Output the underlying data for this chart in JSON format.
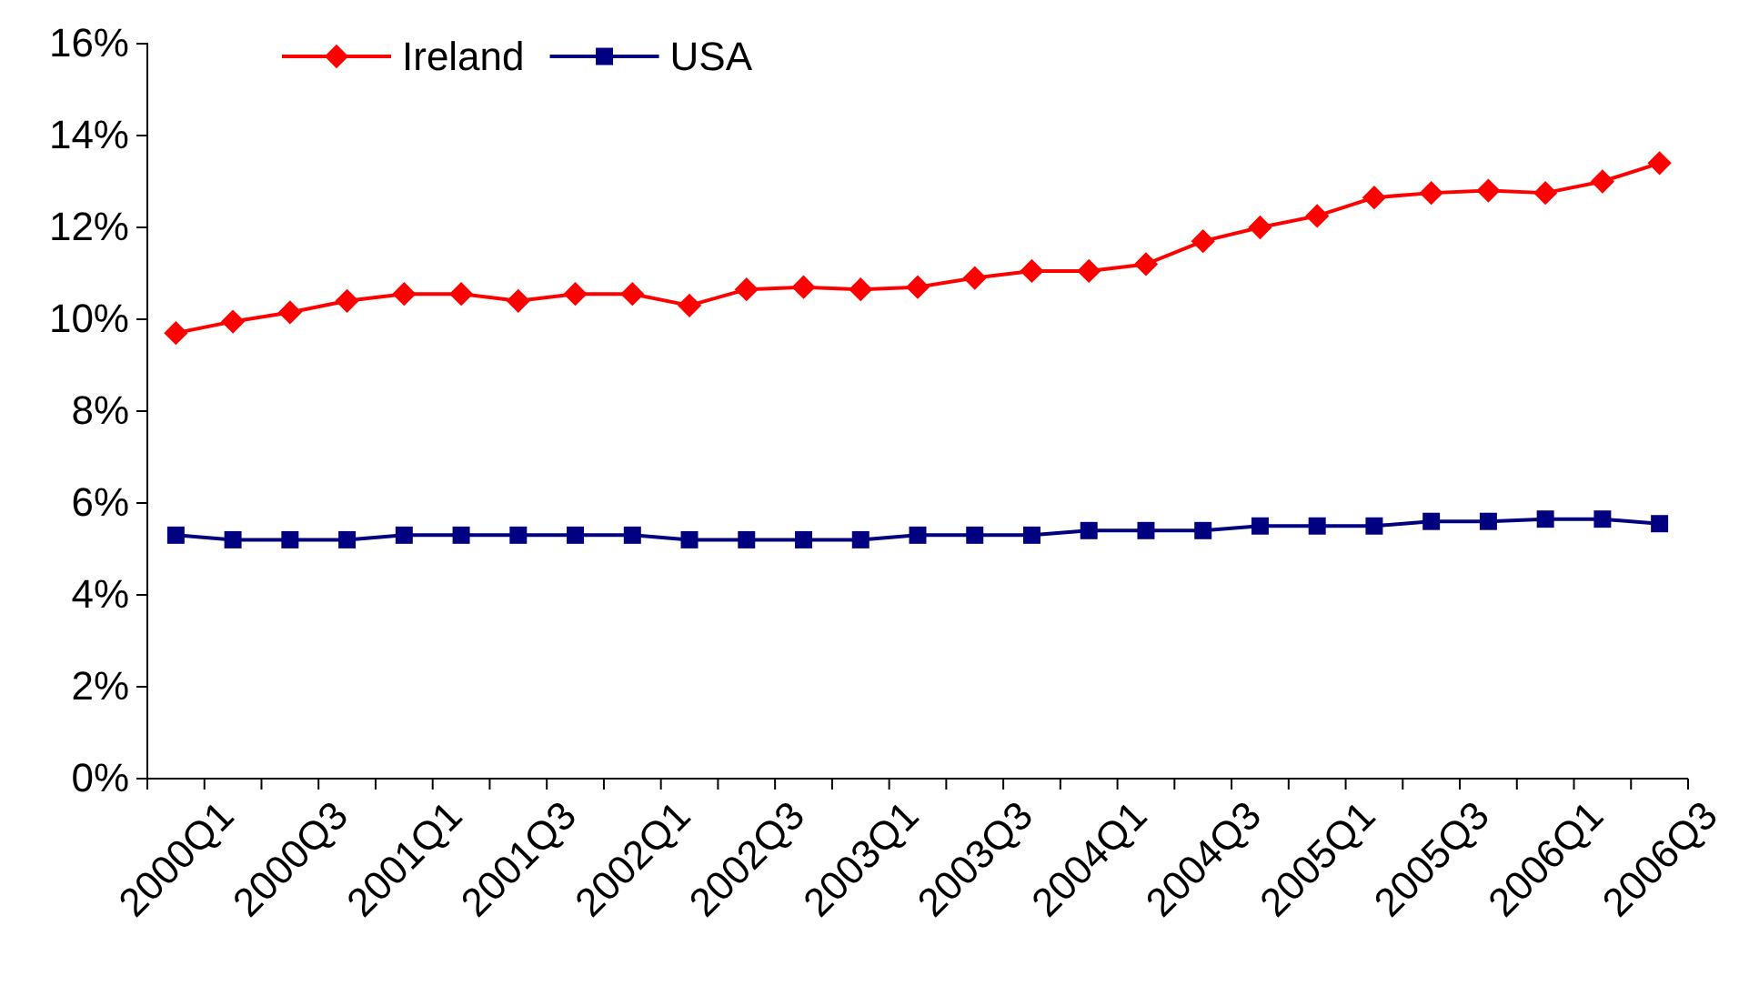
{
  "chart_data": {
    "type": "line",
    "categories": [
      "2000Q1",
      null,
      "2000Q3",
      null,
      "2001Q1",
      null,
      "2001Q3",
      null,
      "2002Q1",
      null,
      "2002Q3",
      null,
      "2003Q1",
      null,
      "2003Q3",
      null,
      "2004Q1",
      null,
      "2004Q3",
      null,
      "2005Q1",
      null,
      "2005Q3",
      null,
      "2006Q1",
      null,
      "2006Q3"
    ],
    "series": [
      {
        "name": "Ireland",
        "color": "#ff0000",
        "marker": "diamond",
        "values": [
          9.7,
          9.95,
          10.15,
          10.4,
          10.55,
          10.55,
          10.4,
          10.55,
          10.55,
          10.3,
          10.65,
          10.7,
          10.65,
          10.7,
          10.9,
          11.05,
          11.05,
          11.2,
          11.7,
          12.0,
          12.25,
          12.65,
          12.75,
          12.8,
          12.75,
          13.0,
          13.4
        ]
      },
      {
        "name": "USA",
        "color": "#000080",
        "marker": "square",
        "values": [
          5.3,
          5.2,
          5.2,
          5.2,
          5.3,
          5.3,
          5.3,
          5.3,
          5.3,
          5.2,
          5.2,
          5.2,
          5.2,
          5.3,
          5.3,
          5.3,
          5.4,
          5.4,
          5.4,
          5.5,
          5.5,
          5.5,
          5.6,
          5.6,
          5.65,
          5.65,
          5.55
        ]
      }
    ],
    "ylim": [
      0,
      16
    ],
    "yticks": [
      {
        "value": 0,
        "label": "0%"
      },
      {
        "value": 2,
        "label": "2%"
      },
      {
        "value": 4,
        "label": "4%"
      },
      {
        "value": 6,
        "label": "6%"
      },
      {
        "value": 8,
        "label": "8%"
      },
      {
        "value": 10,
        "label": "10%"
      },
      {
        "value": 12,
        "label": "12%"
      },
      {
        "value": 14,
        "label": "14%"
      },
      {
        "value": 16,
        "label": "16%"
      }
    ],
    "grid": false,
    "legend": "top left",
    "line_style": "solid"
  }
}
